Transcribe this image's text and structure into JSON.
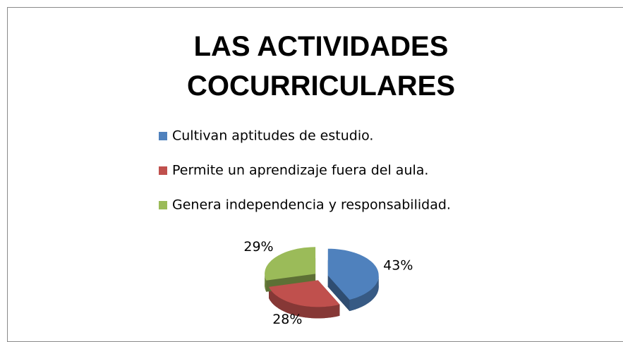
{
  "chart_data": {
    "type": "pie",
    "title": "LAS ACTIVIDADES COCURRICULARES",
    "categories": [
      "Cultivan aptitudes de estudio.",
      "Permite un aprendizaje fuera del aula.",
      "Genera independencia y responsabilidad."
    ],
    "values": [
      43,
      28,
      29
    ],
    "value_labels": [
      "43%",
      "28%",
      "29%"
    ],
    "colors": [
      "#4f81bd",
      "#c0504d",
      "#9bbb59"
    ]
  }
}
